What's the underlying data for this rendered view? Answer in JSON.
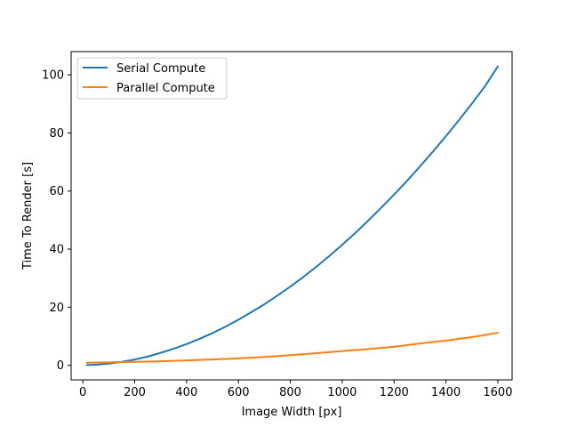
{
  "chart_data": {
    "type": "line",
    "xlabel": "Image Width [px]",
    "ylabel": "Time To Render [s]",
    "xlim": [
      -45,
      1655
    ],
    "ylim": [
      -5,
      108
    ],
    "xticks": [
      0,
      200,
      400,
      600,
      800,
      1000,
      1200,
      1400,
      1600
    ],
    "yticks": [
      0,
      20,
      40,
      60,
      80,
      100
    ],
    "legend_position": "top-left",
    "grid": false,
    "series": [
      {
        "name": "Serial Compute",
        "color": "#1f77b4",
        "x": [
          16,
          50,
          100,
          150,
          200,
          250,
          300,
          350,
          400,
          450,
          500,
          550,
          600,
          650,
          700,
          750,
          800,
          850,
          900,
          950,
          1000,
          1050,
          1100,
          1150,
          1200,
          1250,
          1300,
          1350,
          1400,
          1450,
          1500,
          1550,
          1600
        ],
        "values": [
          0.1,
          0.2,
          0.6,
          1.2,
          2.0,
          3.0,
          4.3,
          5.7,
          7.3,
          9.1,
          11.1,
          13.3,
          15.7,
          18.3,
          21.0,
          24.0,
          27.1,
          30.4,
          33.9,
          37.6,
          41.5,
          45.5,
          49.8,
          54.2,
          58.8,
          63.5,
          68.5,
          73.6,
          78.9,
          84.4,
          90.1,
          96.0,
          102.9
        ]
      },
      {
        "name": "Parallel Compute",
        "color": "#ff7f0e",
        "x": [
          16,
          100,
          200,
          300,
          400,
          500,
          600,
          700,
          800,
          900,
          1000,
          1100,
          1200,
          1300,
          1400,
          1500,
          1600
        ],
        "values": [
          0.9,
          1.0,
          1.2,
          1.4,
          1.7,
          2.0,
          2.4,
          2.9,
          3.5,
          4.2,
          4.9,
          5.6,
          6.4,
          7.5,
          8.5,
          9.7,
          11.2
        ]
      }
    ]
  }
}
